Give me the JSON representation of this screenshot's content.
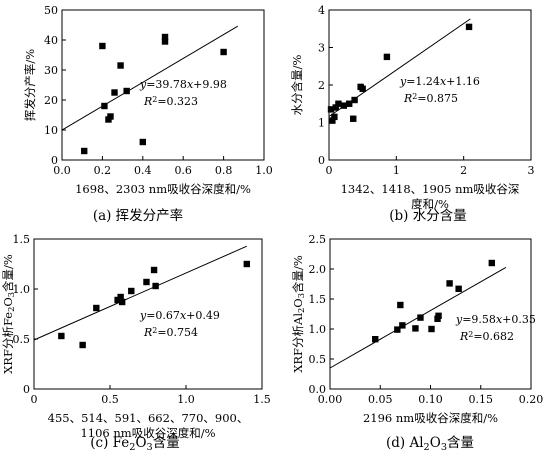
{
  "chart_data": [
    {
      "type": "scatter",
      "panel": "a",
      "caption": "(a) 挥发分产率",
      "xlabel": "1698、2303 nm吸收谷深度和/%",
      "ylabel": "挥发分产率/%",
      "xlim": [
        0,
        1.0
      ],
      "ylim": [
        0,
        50
      ],
      "xticks": [
        "0.0",
        "0.2",
        "0.4",
        "0.6",
        "0.8",
        "1.0"
      ],
      "yticks": [
        "0",
        "10",
        "20",
        "30",
        "40",
        "50"
      ],
      "points": [
        [
          0.11,
          3.0
        ],
        [
          0.2,
          38.0
        ],
        [
          0.21,
          18.0
        ],
        [
          0.23,
          13.5
        ],
        [
          0.24,
          14.5
        ],
        [
          0.26,
          22.5
        ],
        [
          0.29,
          31.5
        ],
        [
          0.32,
          23.0
        ],
        [
          0.4,
          6.0
        ],
        [
          0.51,
          39.5
        ],
        [
          0.51,
          41.0
        ],
        [
          0.8,
          36.0
        ]
      ],
      "fit": {
        "slope": 39.78,
        "intercept": 9.98,
        "x_range": [
          0,
          0.87
        ]
      },
      "equation": "y=39.78x+9.98",
      "r2_label": "R²=0.323"
    },
    {
      "type": "scatter",
      "panel": "b",
      "caption": "(b) 水分含量",
      "xlabel": "1342、1418、1905 nm吸收谷深\n度和/%",
      "ylabel": "水分含量/%",
      "xlim": [
        0,
        3
      ],
      "ylim": [
        0,
        4
      ],
      "xticks": [
        "0",
        "1",
        "2",
        "3"
      ],
      "yticks": [
        "0",
        "1",
        "2",
        "3",
        "4"
      ],
      "points": [
        [
          0.03,
          1.35
        ],
        [
          0.05,
          1.05
        ],
        [
          0.08,
          1.15
        ],
        [
          0.1,
          1.4
        ],
        [
          0.14,
          1.5
        ],
        [
          0.22,
          1.45
        ],
        [
          0.3,
          1.5
        ],
        [
          0.36,
          1.1
        ],
        [
          0.38,
          1.6
        ],
        [
          0.47,
          1.95
        ],
        [
          0.5,
          1.9
        ],
        [
          0.86,
          2.75
        ],
        [
          2.08,
          3.55
        ]
      ],
      "fit": {
        "slope": 1.24,
        "intercept": 1.16,
        "x_range": [
          0,
          2.1
        ]
      },
      "equation": "y=1.24x+1.16",
      "r2_label": "R²=0.875"
    },
    {
      "type": "scatter",
      "panel": "c",
      "caption": "(c) Fe₂O₃含量",
      "xlabel": "455、514、591、662、770、900、\n1106 nm吸收谷深度和/%",
      "ylabel": "XRF分析Fe₂O₃含量/%",
      "xlim": [
        0,
        1.5
      ],
      "ylim": [
        0,
        1.5
      ],
      "xticks": [
        "0",
        "0.5",
        "1.0",
        "1.5"
      ],
      "yticks": [
        "0",
        "0.5",
        "1.0",
        "1.5"
      ],
      "points": [
        [
          0.18,
          0.53
        ],
        [
          0.32,
          0.44
        ],
        [
          0.41,
          0.81
        ],
        [
          0.55,
          0.89
        ],
        [
          0.57,
          0.92
        ],
        [
          0.58,
          0.87
        ],
        [
          0.64,
          0.98
        ],
        [
          0.74,
          1.07
        ],
        [
          0.79,
          1.19
        ],
        [
          0.8,
          1.03
        ],
        [
          1.4,
          1.25
        ]
      ],
      "fit": {
        "slope": 0.67,
        "intercept": 0.49,
        "x_range": [
          0,
          1.4
        ]
      },
      "equation": "y=0.67x+0.49",
      "r2_label": "R²=0.754"
    },
    {
      "type": "scatter",
      "panel": "d",
      "caption": "(d) Al₂O₃含量",
      "xlabel": "2196 nm吸收谷深度和/%",
      "ylabel": "XRF分析Al₂O₃含量/%",
      "xlim": [
        0,
        0.2
      ],
      "ylim": [
        0,
        2.5
      ],
      "xticks": [
        "0.00",
        "0.05",
        "0.10",
        "0.15",
        "0.20"
      ],
      "yticks": [
        "0.0",
        "0.5",
        "1.0",
        "1.5",
        "2.0",
        "2.5"
      ],
      "points": [
        [
          0.045,
          0.83
        ],
        [
          0.067,
          0.99
        ],
        [
          0.07,
          1.4
        ],
        [
          0.072,
          1.06
        ],
        [
          0.085,
          1.01
        ],
        [
          0.09,
          1.19
        ],
        [
          0.101,
          1.0
        ],
        [
          0.107,
          1.17
        ],
        [
          0.108,
          1.22
        ],
        [
          0.119,
          1.76
        ],
        [
          0.128,
          1.67
        ],
        [
          0.161,
          2.1
        ]
      ],
      "fit": {
        "slope": 9.58,
        "intercept": 0.35,
        "x_range": [
          0,
          0.175
        ]
      },
      "equation": "y=9.58x+0.35",
      "r2_label": "R²=0.682"
    }
  ]
}
